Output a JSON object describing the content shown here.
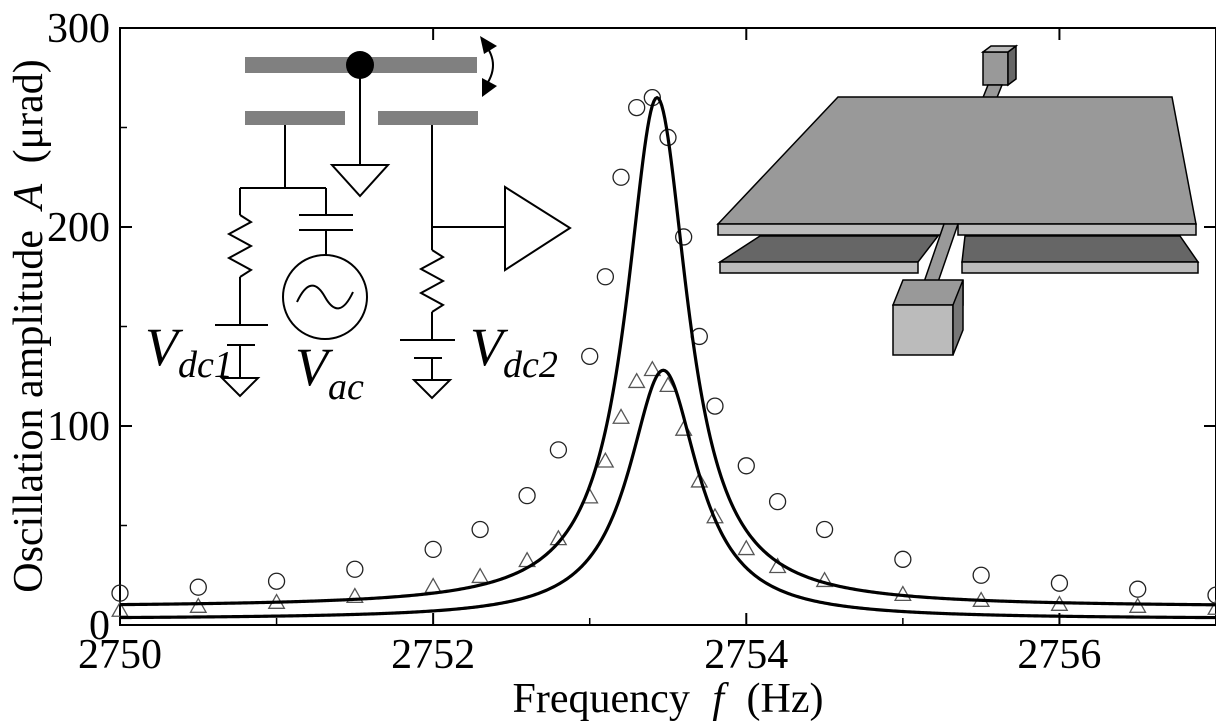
{
  "chart_data": {
    "type": "scatter",
    "xlabel": "Frequency",
    "xlabel_var": "f",
    "xlabel_unit": "(Hz)",
    "ylabel": "Oscillation amplitude",
    "ylabel_var": "A",
    "ylabel_unit": "(μrad)",
    "xlim": [
      2750,
      2757
    ],
    "ylim": [
      0,
      300
    ],
    "x_ticks": [
      "2750",
      "2752",
      "2754",
      "2756"
    ],
    "y_ticks": [
      "0",
      "100",
      "200",
      "300"
    ],
    "grid": false,
    "series": [
      {
        "marker": "circle",
        "x": [
          2750.0,
          2750.5,
          2751.0,
          2751.5,
          2752.0,
          2752.3,
          2752.6,
          2752.8,
          2753.0,
          2753.1,
          2753.2,
          2753.3,
          2753.4,
          2753.5,
          2753.6,
          2753.7,
          2753.8,
          2754.0,
          2754.2,
          2754.5,
          2755.0,
          2755.5,
          2756.0,
          2756.5,
          2757.0
        ],
        "y": [
          16,
          19,
          22,
          28,
          38,
          48,
          65,
          88,
          135,
          175,
          225,
          260,
          265,
          245,
          195,
          145,
          110,
          80,
          62,
          48,
          33,
          25,
          21,
          18,
          15
        ]
      },
      {
        "marker": "triangle",
        "x": [
          2750.0,
          2750.5,
          2751.0,
          2751.5,
          2752.0,
          2752.3,
          2752.6,
          2752.8,
          2753.0,
          2753.1,
          2753.2,
          2753.3,
          2753.4,
          2753.5,
          2753.6,
          2753.7,
          2753.8,
          2754.0,
          2754.2,
          2754.5,
          2755.0,
          2755.5,
          2756.0,
          2756.5,
          2757.0
        ],
        "y": [
          7,
          9,
          11,
          14,
          19,
          24,
          32,
          43,
          64,
          82,
          104,
          122,
          128,
          120,
          98,
          72,
          54,
          38,
          29,
          22,
          15,
          12,
          10,
          9,
          8
        ]
      }
    ],
    "fits": [
      {
        "f0": 2753.43,
        "gamma": 0.24,
        "peak": 265,
        "base": 9
      },
      {
        "f0": 2753.47,
        "gamma": 0.27,
        "peak": 128,
        "base": 3
      }
    ],
    "inset_labels": {
      "vdc1_main": "V",
      "vdc1_sub": "dc1",
      "vac_main": "V",
      "vac_sub": "ac",
      "vdc2_main": "V",
      "vdc2_sub": "dc2"
    }
  }
}
